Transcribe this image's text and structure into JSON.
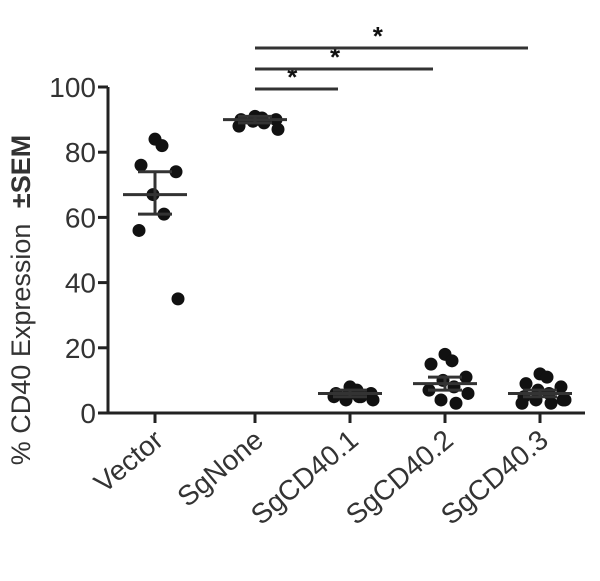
{
  "chart_data": {
    "type": "scatter",
    "ylabel": "% CD40 Expression",
    "ylabel_suffix": "±SEM",
    "ylim": [
      0,
      100
    ],
    "yticks": [
      "0",
      "20",
      "40",
      "60",
      "80",
      "100"
    ],
    "categories": [
      "Vector",
      "SgNone",
      "SgCD40.1",
      "SgCD40.2",
      "SgCD40.3"
    ],
    "groups": [
      {
        "category": "Vector",
        "mean": 67,
        "sem_low": 61,
        "sem_high": 74,
        "points": [
          84,
          82,
          76,
          74,
          67,
          61,
          56,
          35
        ]
      },
      {
        "category": "SgNone",
        "mean": 90,
        "sem_low": 89,
        "sem_high": 91,
        "points": [
          91,
          90.5,
          90,
          90,
          89.5,
          89,
          88,
          87
        ]
      },
      {
        "category": "SgCD40.1",
        "mean": 6,
        "sem_low": 5,
        "sem_high": 7,
        "points": [
          8,
          7,
          6,
          6,
          5.5,
          5,
          5,
          4,
          4,
          5
        ]
      },
      {
        "category": "SgCD40.2",
        "mean": 9,
        "sem_low": 7,
        "sem_high": 11,
        "points": [
          18,
          16,
          15,
          11,
          10,
          8,
          7,
          6,
          4,
          3
        ]
      },
      {
        "category": "SgCD40.3",
        "mean": 6,
        "sem_low": 5,
        "sem_high": 7,
        "points": [
          12,
          11,
          9,
          8,
          7,
          6,
          5,
          4,
          4,
          3,
          3,
          4
        ]
      }
    ],
    "significance": [
      {
        "from": "SgNone",
        "to": "SgCD40.1",
        "label": "*"
      },
      {
        "from": "SgNone",
        "to": "SgCD40.2",
        "label": "*"
      },
      {
        "from": "SgNone",
        "to": "SgCD40.3",
        "label": "*"
      }
    ]
  }
}
